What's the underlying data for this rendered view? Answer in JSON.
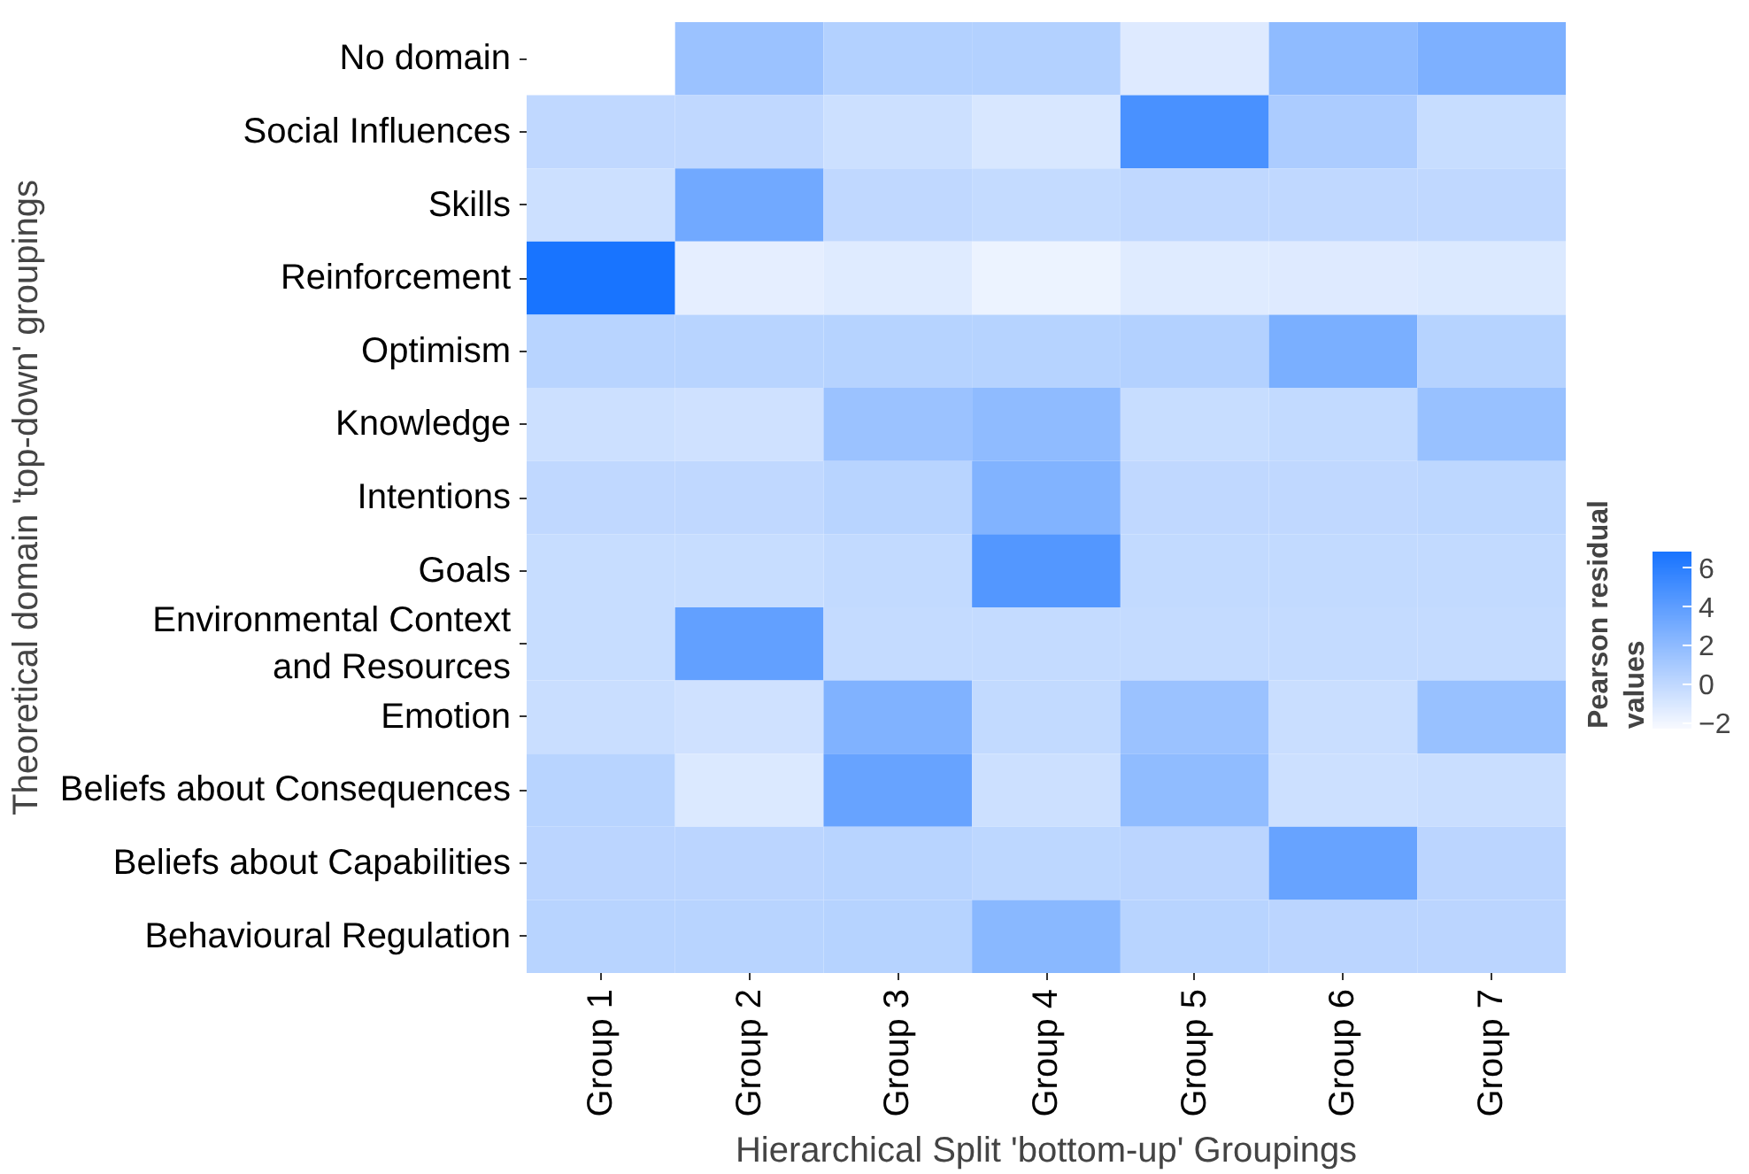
{
  "chart_data": {
    "type": "heatmap",
    "xlabel": "Hierarchical Split 'bottom-up' Groupings",
    "ylabel": "Theoretical domain 'top-down' groupings",
    "clabel": "Pearson residual\nvalues",
    "categories": [
      "Group 1",
      "Group 2",
      "Group 3",
      "Group 4",
      "Group 5",
      "Group 6",
      "Group 7"
    ],
    "y_categories": [
      "No domain",
      "Social Influences",
      "Skills",
      "Reinforcement",
      "Optimism",
      "Knowledge",
      "Intentions",
      "Goals",
      "Environmental Context\nand Resources",
      "Emotion",
      "Beliefs about Consequences",
      "Beliefs about Capabilities",
      "Behavioural Regulation"
    ],
    "cells": [
      [
        null,
        1.5,
        0.5,
        0.5,
        -1.2,
        2,
        2.7
      ],
      [
        0,
        0,
        -0.5,
        -1,
        4.8,
        0.8,
        -0.3
      ],
      [
        -0.5,
        3.2,
        0,
        -0.2,
        0,
        0,
        0
      ],
      [
        6.8,
        -1.5,
        -1.3,
        -1.8,
        -1.3,
        -1.2,
        -1.1
      ],
      [
        0.3,
        0.3,
        0.4,
        0.4,
        0.5,
        2.8,
        0.4
      ],
      [
        -0.5,
        -0.6,
        1.5,
        2,
        -0.3,
        -0.1,
        1.6
      ],
      [
        0,
        0,
        0.3,
        2.5,
        0,
        0,
        0.1
      ],
      [
        -0.3,
        -0.3,
        -0.1,
        4.4,
        -0.1,
        -0.1,
        -0.1
      ],
      [
        -0.3,
        3.8,
        -0.2,
        -0.2,
        -0.2,
        -0.2,
        -0.2
      ],
      [
        -0.4,
        -0.6,
        2.6,
        -0.1,
        1.5,
        -0.4,
        1.6
      ],
      [
        0.3,
        -1.1,
        3.6,
        -0.5,
        1.9,
        -0.5,
        -0.4
      ],
      [
        0.2,
        0.2,
        0.3,
        0.1,
        0.2,
        3.6,
        0.2
      ],
      [
        0.3,
        0.3,
        0.4,
        2.2,
        0.3,
        0.2,
        0.2
      ]
    ],
    "clim": [
      -2.3,
      6.8
    ],
    "cticks": [
      -2,
      0,
      2,
      4,
      6
    ]
  }
}
